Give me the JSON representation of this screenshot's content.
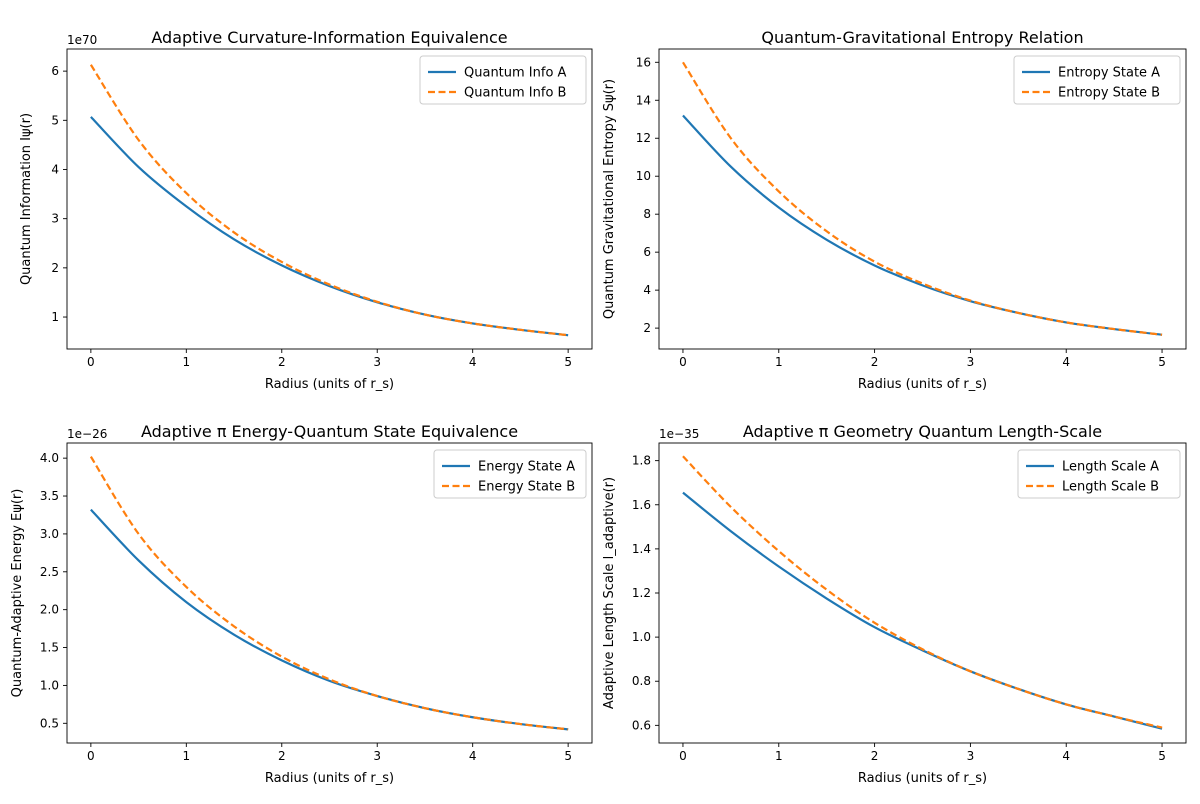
{
  "colors": {
    "series_a": "#1f77b4",
    "series_b": "#ff7f0e",
    "axes": "#000000",
    "background": "#ffffff"
  },
  "chart_data": [
    {
      "type": "line",
      "title": "Adaptive Curvature-Information Equivalence",
      "xlabel": "Radius (units of r_s)",
      "ylabel": "Quantum Information Iψ(r)",
      "offset_label": "1e70",
      "xlim": [
        -0.25,
        5.25
      ],
      "ylim": [
        0.35,
        6.45
      ],
      "xticks": [
        0,
        1,
        2,
        3,
        4,
        5
      ],
      "yticks": [
        1,
        2,
        3,
        4,
        5,
        6
      ],
      "grid": false,
      "legend_position": "top-right",
      "x": [
        0,
        0.5,
        1,
        1.5,
        2,
        2.5,
        3,
        3.5,
        4,
        4.5,
        5
      ],
      "series": [
        {
          "name": "Quantum Info A",
          "style": "solid",
          "values": [
            5.07,
            4.05,
            3.25,
            2.58,
            2.05,
            1.63,
            1.3,
            1.05,
            0.87,
            0.74,
            0.63
          ]
        },
        {
          "name": "Quantum Info B",
          "style": "dashed",
          "values": [
            6.13,
            4.6,
            3.52,
            2.72,
            2.12,
            1.66,
            1.31,
            1.05,
            0.87,
            0.74,
            0.63
          ]
        }
      ]
    },
    {
      "type": "line",
      "title": "Quantum-Gravitational Entropy Relation",
      "xlabel": "Radius (units of r_s)",
      "ylabel": "Quantum Gravitational Entropy Sψ(r)",
      "offset_label": "",
      "xlim": [
        -0.25,
        5.25
      ],
      "ylim": [
        0.9,
        16.7
      ],
      "xticks": [
        0,
        1,
        2,
        3,
        4,
        5
      ],
      "yticks": [
        2,
        4,
        6,
        8,
        10,
        12,
        14,
        16
      ],
      "grid": false,
      "legend_position": "top-right",
      "x": [
        0,
        0.5,
        1,
        1.5,
        2,
        2.5,
        3,
        3.5,
        4,
        4.5,
        5
      ],
      "series": [
        {
          "name": "Entropy State A",
          "style": "solid",
          "values": [
            13.2,
            10.5,
            8.35,
            6.65,
            5.3,
            4.25,
            3.42,
            2.8,
            2.3,
            1.95,
            1.65
          ]
        },
        {
          "name": "Entropy State B",
          "style": "dashed",
          "values": [
            16.0,
            12.0,
            9.2,
            7.1,
            5.5,
            4.35,
            3.45,
            2.8,
            2.3,
            1.95,
            1.65
          ]
        }
      ]
    },
    {
      "type": "line",
      "title": "Adaptive π Energy-Quantum State Equivalence",
      "xlabel": "Radius (units of r_s)",
      "ylabel": "Quantum-Adaptive Energy Eψ(r)",
      "offset_label": "1e−26",
      "xlim": [
        -0.25,
        5.25
      ],
      "ylim": [
        0.24,
        4.2
      ],
      "xticks": [
        0,
        1,
        2,
        3,
        4,
        5
      ],
      "yticks": [
        0.5,
        1.0,
        1.5,
        2.0,
        2.5,
        3.0,
        3.5,
        4.0
      ],
      "ytick_labels": [
        "0.5",
        "1.0",
        "1.5",
        "2.0",
        "2.5",
        "3.0",
        "3.5",
        "4.0"
      ],
      "grid": false,
      "legend_position": "top-right",
      "x": [
        0,
        0.5,
        1,
        1.5,
        2,
        2.5,
        3,
        3.5,
        4,
        4.5,
        5
      ],
      "series": [
        {
          "name": "Energy State A",
          "style": "solid",
          "values": [
            3.32,
            2.65,
            2.1,
            1.67,
            1.33,
            1.06,
            0.86,
            0.7,
            0.58,
            0.49,
            0.42
          ]
        },
        {
          "name": "Energy State B",
          "style": "dashed",
          "values": [
            4.02,
            3.0,
            2.3,
            1.78,
            1.38,
            1.08,
            0.86,
            0.7,
            0.58,
            0.49,
            0.42
          ]
        }
      ]
    },
    {
      "type": "line",
      "title": "Adaptive π Geometry Quantum Length-Scale",
      "xlabel": "Radius (units of r_s)",
      "ylabel": "Adaptive Length Scale l_adaptive(r)",
      "offset_label": "1e−35",
      "xlim": [
        -0.25,
        5.25
      ],
      "ylim": [
        0.52,
        1.88
      ],
      "xticks": [
        0,
        1,
        2,
        3,
        4,
        5
      ],
      "yticks": [
        0.6,
        0.8,
        1.0,
        1.2,
        1.4,
        1.6,
        1.8
      ],
      "ytick_labels": [
        "0.6",
        "0.8",
        "1.0",
        "1.2",
        "1.4",
        "1.6",
        "1.8"
      ],
      "grid": false,
      "legend_position": "top-right",
      "x": [
        0,
        0.5,
        1,
        1.5,
        2,
        2.5,
        3,
        3.5,
        4,
        4.5,
        5
      ],
      "series": [
        {
          "name": "Length Scale A",
          "style": "solid",
          "values": [
            1.655,
            1.48,
            1.32,
            1.175,
            1.045,
            0.94,
            0.845,
            0.765,
            0.695,
            0.64,
            0.585
          ]
        },
        {
          "name": "Length Scale B",
          "style": "dashed",
          "values": [
            1.82,
            1.59,
            1.39,
            1.215,
            1.065,
            0.945,
            0.845,
            0.765,
            0.695,
            0.64,
            0.59
          ]
        }
      ]
    }
  ]
}
